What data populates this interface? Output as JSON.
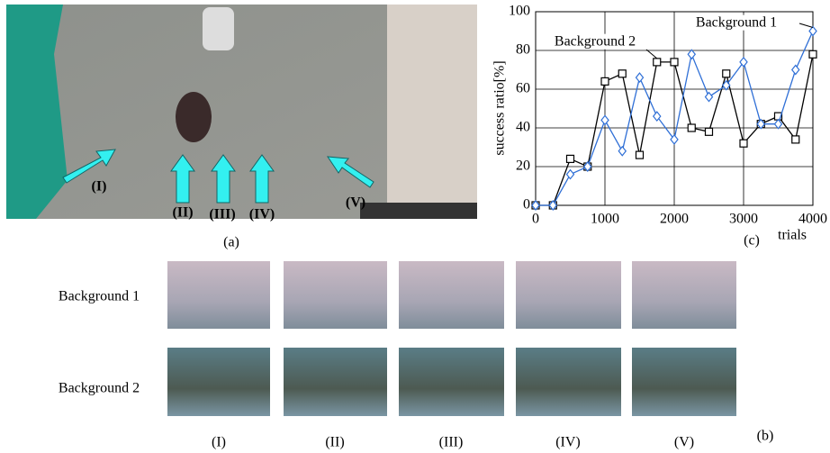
{
  "chart_data": {
    "type": "line",
    "x": [
      0,
      250,
      500,
      750,
      1000,
      1250,
      1500,
      1750,
      2000,
      2250,
      2500,
      2750,
      3000,
      3250,
      3500,
      3750,
      4000
    ],
    "series": [
      {
        "name": "Background 1",
        "color": "#2f6fd6",
        "marker": "diamond",
        "values": [
          0,
          0,
          16,
          20,
          44,
          28,
          66,
          46,
          34,
          78,
          56,
          62,
          74,
          42,
          42,
          70,
          90
        ]
      },
      {
        "name": "Background 2",
        "color": "#000000",
        "marker": "square",
        "values": [
          0,
          0,
          24,
          20,
          64,
          68,
          26,
          74,
          74,
          40,
          38,
          68,
          32,
          42,
          46,
          34,
          78
        ]
      }
    ],
    "xlim": [
      0,
      4000
    ],
    "xticks": [
      0,
      1000,
      2000,
      3000,
      4000
    ],
    "ylim": [
      0,
      100
    ],
    "yticks": [
      0,
      20,
      40,
      60,
      80,
      100
    ],
    "ylabel": "success ratio[%]",
    "xlabel": "trials",
    "grid": true
  },
  "figure": {
    "panel_labels": [
      "(a)",
      "(b)",
      "(c)"
    ],
    "arrow_labels": [
      "(I)",
      "(II)",
      "(III)",
      "(IV)",
      "(V)"
    ],
    "row_labels": [
      "Background 1",
      "Background 2"
    ],
    "column_labels": [
      "(I)",
      "(II)",
      "(III)",
      "(IV)",
      "(V)"
    ]
  }
}
